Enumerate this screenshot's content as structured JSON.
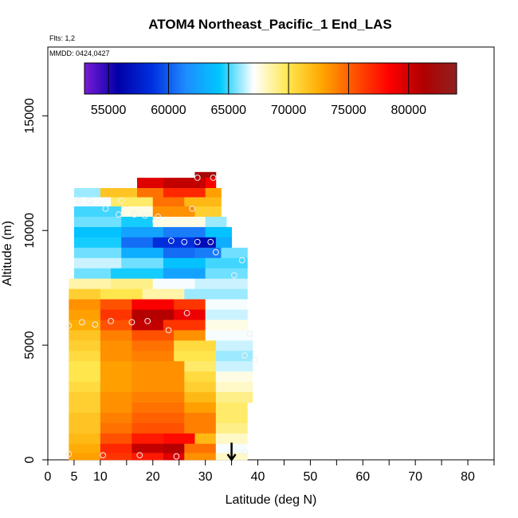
{
  "chart_data": {
    "type": "heatmap",
    "title": "ATOM4 Northeast_Pacific_1 End_LAS",
    "flights_label": "Flts: 1,2",
    "date_label": "MMDD: 0424,0427",
    "xlabel": "Latitude (deg N)",
    "ylabel": "Altitude (m)",
    "xlim": [
      0,
      85
    ],
    "ylim": [
      0,
      18000
    ],
    "x_ticks": [
      0,
      5,
      10,
      20,
      30,
      40,
      50,
      60,
      70,
      80
    ],
    "y_ticks": [
      0,
      5000,
      10000,
      15000
    ],
    "colorbar": {
      "min": 53000,
      "max": 84000,
      "ticks": [
        55000,
        60000,
        65000,
        70000,
        75000,
        80000
      ],
      "colors": [
        "#7a1bd6",
        "#0000a8",
        "#0030e0",
        "#1e8cff",
        "#00c8ff",
        "#ffffff",
        "#ffe850",
        "#ffa800",
        "#ff5000",
        "#ff0000",
        "#b00000",
        "#902020"
      ]
    },
    "rows": [
      {
        "alt": [
          12300,
          12550
        ],
        "segs": [
          [
            28,
            32,
            82000
          ]
        ]
      },
      {
        "alt": [
          11850,
          12300
        ],
        "segs": [
          [
            17,
            22,
            79500
          ],
          [
            22,
            30,
            80500
          ],
          [
            30,
            32,
            78500
          ]
        ]
      },
      {
        "alt": [
          11450,
          11850
        ],
        "segs": [
          [
            5,
            10,
            66000
          ],
          [
            10,
            17,
            71500
          ],
          [
            17,
            22,
            74500
          ],
          [
            22,
            30,
            77000
          ],
          [
            30,
            33,
            73000
          ]
        ]
      },
      {
        "alt": [
          11050,
          11450
        ],
        "segs": [
          [
            5,
            12,
            67000
          ],
          [
            12,
            20,
            69500
          ],
          [
            20,
            26,
            74500
          ],
          [
            26,
            33,
            72000
          ]
        ]
      },
      {
        "alt": [
          10600,
          11050
        ],
        "segs": [
          [
            5,
            14,
            65000
          ],
          [
            14,
            20,
            67500
          ],
          [
            20,
            28,
            73500
          ],
          [
            28,
            33,
            71000
          ]
        ]
      },
      {
        "alt": [
          10150,
          10600
        ],
        "segs": [
          [
            5,
            14,
            65500
          ],
          [
            14,
            20,
            64500
          ],
          [
            20,
            30,
            67500
          ],
          [
            30,
            34,
            66000
          ]
        ]
      },
      {
        "alt": [
          9700,
          10150
        ],
        "segs": [
          [
            5,
            14,
            64000
          ],
          [
            14,
            22,
            62500
          ],
          [
            22,
            30,
            61000
          ],
          [
            30,
            35,
            64000
          ]
        ]
      },
      {
        "alt": [
          9250,
          9700
        ],
        "segs": [
          [
            5,
            14,
            64500
          ],
          [
            14,
            20,
            60500
          ],
          [
            20,
            28,
            58500
          ],
          [
            28,
            32,
            56500
          ],
          [
            32,
            35,
            63000
          ]
        ]
      },
      {
        "alt": [
          8800,
          9250
        ],
        "segs": [
          [
            5,
            14,
            65500
          ],
          [
            14,
            22,
            63000
          ],
          [
            22,
            28,
            60500
          ],
          [
            28,
            33,
            61000
          ],
          [
            33,
            38,
            65500
          ]
        ]
      },
      {
        "alt": [
          8350,
          8800
        ],
        "segs": [
          [
            5,
            14,
            66500
          ],
          [
            14,
            22,
            65500
          ],
          [
            22,
            30,
            64000
          ],
          [
            30,
            38,
            65000
          ]
        ]
      },
      {
        "alt": [
          7900,
          8350
        ],
        "segs": [
          [
            5,
            12,
            65500
          ],
          [
            12,
            22,
            64500
          ],
          [
            22,
            30,
            62500
          ],
          [
            30,
            38,
            65500
          ]
        ]
      },
      {
        "alt": [
          7450,
          7900
        ],
        "segs": [
          [
            4,
            12,
            68500
          ],
          [
            12,
            20,
            69000
          ],
          [
            20,
            28,
            67000
          ],
          [
            28,
            38,
            66500
          ]
        ]
      },
      {
        "alt": [
          7000,
          7450
        ],
        "segs": [
          [
            4,
            10,
            71000
          ],
          [
            10,
            18,
            70000
          ],
          [
            18,
            26,
            68500
          ],
          [
            26,
            38,
            66000
          ]
        ]
      },
      {
        "alt": [
          6550,
          7000
        ],
        "segs": [
          [
            4,
            10,
            73500
          ],
          [
            10,
            16,
            75500
          ],
          [
            16,
            24,
            78500
          ],
          [
            24,
            30,
            76500
          ],
          [
            30,
            38,
            67000
          ]
        ]
      },
      {
        "alt": [
          6100,
          6550
        ],
        "segs": [
          [
            4,
            10,
            73000
          ],
          [
            10,
            16,
            76500
          ],
          [
            16,
            24,
            81000
          ],
          [
            24,
            30,
            79000
          ],
          [
            30,
            38,
            66500
          ]
        ]
      },
      {
        "alt": [
          5650,
          6100
        ],
        "segs": [
          [
            4,
            10,
            72500
          ],
          [
            10,
            16,
            75500
          ],
          [
            16,
            22,
            80500
          ],
          [
            22,
            30,
            76500
          ],
          [
            30,
            38,
            67500
          ]
        ]
      },
      {
        "alt": [
          5200,
          5650
        ],
        "segs": [
          [
            4,
            10,
            71500
          ],
          [
            10,
            16,
            74000
          ],
          [
            16,
            24,
            75500
          ],
          [
            24,
            30,
            73500
          ],
          [
            30,
            39,
            67000
          ]
        ]
      },
      {
        "alt": [
          4750,
          5200
        ],
        "segs": [
          [
            4,
            10,
            71000
          ],
          [
            10,
            16,
            73500
          ],
          [
            16,
            24,
            74500
          ],
          [
            24,
            32,
            70500
          ],
          [
            32,
            39,
            66500
          ]
        ]
      },
      {
        "alt": [
          4300,
          4750
        ],
        "segs": [
          [
            4,
            10,
            70500
          ],
          [
            10,
            16,
            73500
          ],
          [
            16,
            24,
            74000
          ],
          [
            24,
            32,
            70000
          ],
          [
            32,
            39,
            66000
          ]
        ]
      },
      {
        "alt": [
          3850,
          4300
        ],
        "segs": [
          [
            4,
            10,
            70000
          ],
          [
            10,
            16,
            73000
          ],
          [
            16,
            26,
            73500
          ],
          [
            26,
            32,
            69500
          ],
          [
            32,
            39,
            66500
          ]
        ]
      },
      {
        "alt": [
          3400,
          3850
        ],
        "segs": [
          [
            4,
            10,
            70000
          ],
          [
            10,
            16,
            73000
          ],
          [
            16,
            26,
            73500
          ],
          [
            26,
            32,
            70500
          ],
          [
            32,
            39,
            67500
          ]
        ]
      },
      {
        "alt": [
          2950,
          3400
        ],
        "segs": [
          [
            4,
            10,
            70500
          ],
          [
            10,
            16,
            73000
          ],
          [
            16,
            26,
            73500
          ],
          [
            26,
            32,
            71000
          ],
          [
            32,
            39,
            68000
          ]
        ]
      },
      {
        "alt": [
          2500,
          2950
        ],
        "segs": [
          [
            4,
            10,
            71000
          ],
          [
            10,
            16,
            73500
          ],
          [
            16,
            26,
            74000
          ],
          [
            26,
            32,
            72000
          ],
          [
            32,
            39,
            69000
          ]
        ]
      },
      {
        "alt": [
          2050,
          2500
        ],
        "segs": [
          [
            4,
            10,
            71000
          ],
          [
            10,
            16,
            73500
          ],
          [
            16,
            26,
            74500
          ],
          [
            26,
            32,
            73000
          ],
          [
            32,
            38,
            69500
          ]
        ]
      },
      {
        "alt": [
          1600,
          2050
        ],
        "segs": [
          [
            4,
            10,
            71500
          ],
          [
            10,
            16,
            74000
          ],
          [
            16,
            26,
            75000
          ],
          [
            26,
            32,
            74000
          ],
          [
            32,
            38,
            69500
          ]
        ]
      },
      {
        "alt": [
          1150,
          1600
        ],
        "segs": [
          [
            4,
            10,
            71500
          ],
          [
            10,
            16,
            74500
          ],
          [
            16,
            26,
            75500
          ],
          [
            26,
            32,
            74000
          ],
          [
            32,
            38,
            69000
          ]
        ]
      },
      {
        "alt": [
          700,
          1150
        ],
        "segs": [
          [
            4,
            10,
            72000
          ],
          [
            10,
            16,
            75500
          ],
          [
            16,
            22,
            77500
          ],
          [
            22,
            28,
            78000
          ],
          [
            28,
            32,
            72000
          ],
          [
            32,
            38,
            68000
          ]
        ]
      },
      {
        "alt": [
          300,
          700
        ],
        "segs": [
          [
            4,
            10,
            72500
          ],
          [
            10,
            16,
            77000
          ],
          [
            16,
            22,
            80500
          ],
          [
            22,
            26,
            81000
          ],
          [
            26,
            32,
            74500
          ],
          [
            32,
            38,
            67000
          ]
        ]
      },
      {
        "alt": [
          0,
          300
        ],
        "segs": [
          [
            4,
            10,
            73000
          ],
          [
            10,
            16,
            76500
          ],
          [
            16,
            22,
            77500
          ],
          [
            22,
            26,
            79500
          ],
          [
            26,
            32,
            73500
          ],
          [
            32,
            38,
            68000
          ]
        ]
      }
    ],
    "points": [
      [
        28.5,
        12300
      ],
      [
        31.5,
        12300
      ],
      [
        6,
        11300
      ],
      [
        8,
        11300
      ],
      [
        14,
        11300
      ],
      [
        11,
        10950
      ],
      [
        27.5,
        10950
      ],
      [
        13.5,
        10700
      ],
      [
        16.5,
        10700
      ],
      [
        18.5,
        10650
      ],
      [
        21,
        10600
      ],
      [
        20.5,
        10400
      ],
      [
        23.5,
        9550
      ],
      [
        26,
        9500
      ],
      [
        28.5,
        9500
      ],
      [
        31,
        9500
      ],
      [
        32,
        9050
      ],
      [
        37,
        8700
      ],
      [
        35.5,
        8050
      ],
      [
        4,
        5850
      ],
      [
        6.5,
        6000
      ],
      [
        9,
        5900
      ],
      [
        12,
        6050
      ],
      [
        16,
        6000
      ],
      [
        19,
        6050
      ],
      [
        23,
        5650
      ],
      [
        26.5,
        6400
      ],
      [
        38.5,
        5500
      ],
      [
        37.5,
        4550
      ],
      [
        39.5,
        4350
      ],
      [
        4,
        250
      ],
      [
        10.5,
        200
      ],
      [
        17.5,
        200
      ],
      [
        24.5,
        150
      ],
      [
        37.5,
        350
      ]
    ],
    "arrow": {
      "x": 35,
      "from": 750,
      "to": 0
    }
  }
}
